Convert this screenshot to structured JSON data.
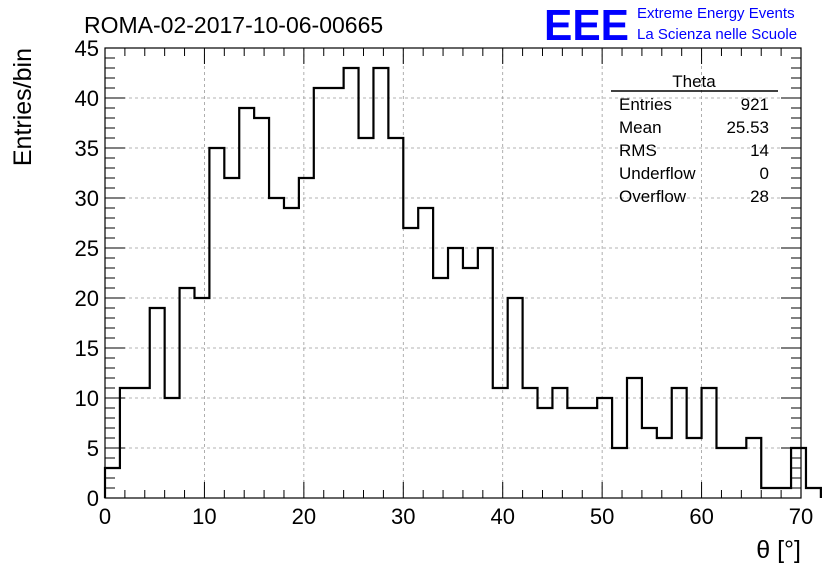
{
  "run_title": "ROMA-02-2017-10-06-00665",
  "logo": {
    "mark": "EEE",
    "line1": "Extreme Energy Events",
    "line2": "La Scienza nelle Scuole",
    "color": "#0000ff"
  },
  "stats_box": {
    "title": "Theta",
    "rows": [
      {
        "label": "Entries",
        "value": "921"
      },
      {
        "label": "Mean",
        "value": "25.53"
      },
      {
        "label": "RMS",
        "value": "14"
      },
      {
        "label": "Underflow",
        "value": "0"
      },
      {
        "label": "Overflow",
        "value": "28"
      }
    ]
  },
  "chart_data": {
    "type": "histogram",
    "xlabel": "θ [°]",
    "ylabel": "Entries/bin",
    "xlim": [
      0,
      70
    ],
    "ylim": [
      0,
      45
    ],
    "xticks": [
      0,
      10,
      20,
      30,
      40,
      50,
      60,
      70
    ],
    "yticks": [
      0,
      5,
      10,
      15,
      20,
      25,
      30,
      35,
      40,
      45
    ],
    "grid": true,
    "bin_width": 1.5,
    "bin_start": 0,
    "values": [
      3,
      11,
      11,
      19,
      10,
      21,
      20,
      35,
      32,
      39,
      38,
      30,
      29,
      32,
      41,
      41,
      43,
      36,
      43,
      36,
      27,
      29,
      22,
      25,
      23,
      25,
      11,
      20,
      11,
      9,
      11,
      9,
      9,
      10,
      5,
      12,
      7,
      6,
      11,
      6,
      11,
      5,
      5,
      6,
      1,
      1,
      5,
      1
    ],
    "line_color": "#000000",
    "grid_color": "#9a9a9a"
  }
}
